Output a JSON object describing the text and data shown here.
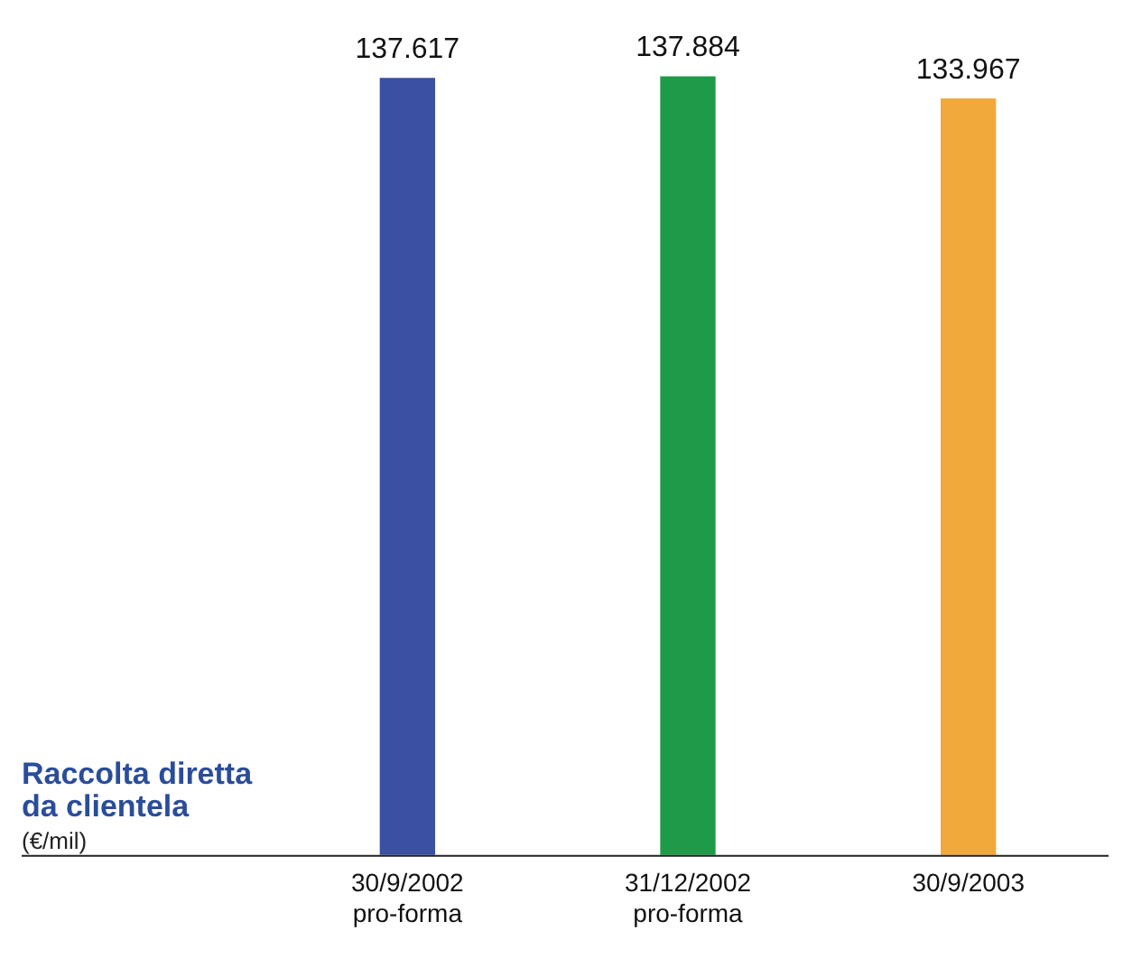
{
  "chart_data": {
    "type": "bar",
    "title": "Raccolta diretta da clientela",
    "subtitle": "(€/mil)",
    "categories": [
      "30/9/2002\npro-forma",
      "31/12/2002\npro-forma",
      "30/9/2003"
    ],
    "values": [
      137617,
      137884,
      133967
    ],
    "colors": [
      "#3b4fa3",
      "#1f9a48",
      "#f2a93b"
    ],
    "value_labels": [
      "137.617",
      "137.884",
      "133.967"
    ],
    "grid": false,
    "legend": false
  }
}
